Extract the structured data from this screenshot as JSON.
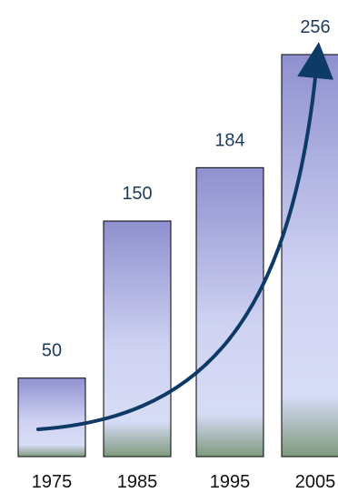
{
  "chart_data": {
    "type": "bar",
    "categories": [
      "1975",
      "1985",
      "1995",
      "2005"
    ],
    "values": [
      50,
      150,
      184,
      256
    ],
    "data_labels": [
      "50",
      "150",
      "184",
      "256"
    ],
    "title": "",
    "xlabel": "",
    "ylabel": "",
    "ylim": [
      0,
      256
    ],
    "grid": false,
    "legend": "none",
    "trend_arrow": true,
    "colors": {
      "bar_top": "#8f90cf",
      "bar_mid": "#cfd3f2",
      "bar_low": "#d7dcf6",
      "bar_bottom": "#7f9a7e",
      "bar_border": "#000000",
      "arrow": "#0d3a66",
      "value_label": "#1f3a5c",
      "tick_label": "#111111"
    }
  }
}
